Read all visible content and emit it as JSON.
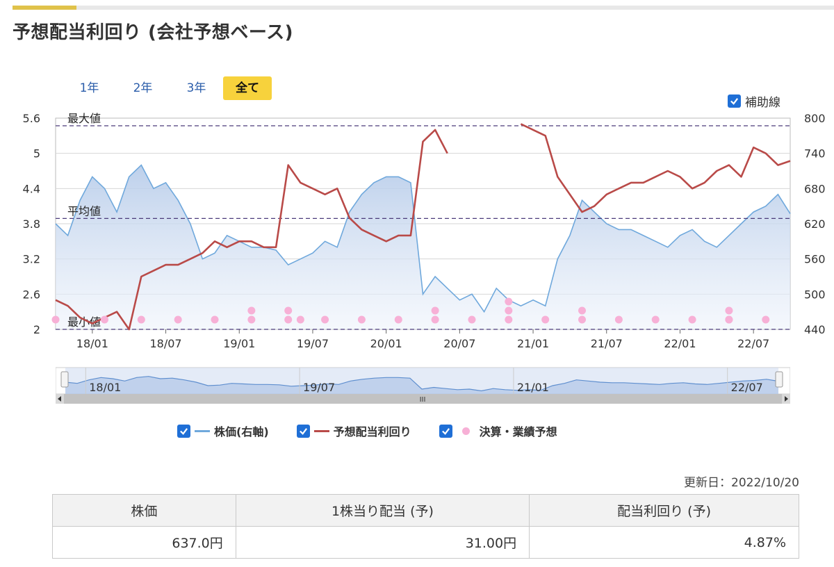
{
  "page": {
    "title": "予想配当利回り (会社予想ベース)"
  },
  "range_tabs": [
    {
      "label": "1年",
      "active": false
    },
    {
      "label": "2年",
      "active": false
    },
    {
      "label": "3年",
      "active": false
    },
    {
      "label": "全て",
      "active": true
    }
  ],
  "aux_line_toggle": {
    "label": "補助線",
    "checked": true
  },
  "legend": {
    "price": {
      "label": "株価(右軸)",
      "checked": true,
      "color": "#6fa8dc"
    },
    "yield": {
      "label": "予想配当利回り",
      "checked": true,
      "color": "#b94a48"
    },
    "events": {
      "label": "決算・業績予想",
      "checked": true,
      "color": "#f7b0d6"
    }
  },
  "navigator": {
    "tick_labels": [
      "18/01",
      "19/07",
      "21/01",
      "22/07"
    ],
    "scroll_grip": "III"
  },
  "updated": {
    "text": "更新日：2022/10/20"
  },
  "summary_table": {
    "headers": [
      "株価",
      "1株当り配当 (予)",
      "配当利回り (予)"
    ],
    "values": [
      "637.0円",
      "31.00円",
      "4.87%"
    ]
  },
  "chart_data": {
    "type": "line",
    "x_tick_labels": [
      "18/01",
      "18/07",
      "19/01",
      "19/07",
      "20/01",
      "20/07",
      "21/01",
      "21/07",
      "22/01",
      "22/07"
    ],
    "x_range": [
      "2017-10",
      "2022-10"
    ],
    "y_left": {
      "ticks": [
        "2",
        "2.6",
        "3.2",
        "3.8",
        "4.4",
        "5",
        "5.6"
      ],
      "range": [
        2,
        5.6
      ],
      "unit": "%"
    },
    "y_right": {
      "ticks": [
        "440",
        "500",
        "560",
        "620",
        "680",
        "740",
        "800"
      ],
      "range": [
        440,
        800
      ],
      "unit": "円"
    },
    "reference_lines": [
      {
        "label": "最大値",
        "value": 5.47
      },
      {
        "label": "平均値",
        "value": 3.89
      },
      {
        "label": "最小値",
        "value": 2.0
      }
    ],
    "grid": true,
    "series": [
      {
        "name": "株価(右軸)",
        "axis": "right",
        "x": [
          "2017-10",
          "2017-11",
          "2017-12",
          "2018-01",
          "2018-02",
          "2018-03",
          "2018-04",
          "2018-05",
          "2018-06",
          "2018-07",
          "2018-08",
          "2018-09",
          "2018-10",
          "2018-11",
          "2018-12",
          "2019-01",
          "2019-02",
          "2019-03",
          "2019-04",
          "2019-05",
          "2019-06",
          "2019-07",
          "2019-08",
          "2019-09",
          "2019-10",
          "2019-11",
          "2019-12",
          "2020-01",
          "2020-02",
          "2020-03",
          "2020-04",
          "2020-05",
          "2020-06",
          "2020-07",
          "2020-08",
          "2020-09",
          "2020-10",
          "2020-11",
          "2020-12",
          "2021-01",
          "2021-02",
          "2021-03",
          "2021-04",
          "2021-05",
          "2021-06",
          "2021-07",
          "2021-08",
          "2021-09",
          "2021-10",
          "2021-11",
          "2021-12",
          "2022-01",
          "2022-02",
          "2022-03",
          "2022-04",
          "2022-05",
          "2022-06",
          "2022-07",
          "2022-08",
          "2022-09",
          "2022-10"
        ],
        "values": [
          620,
          600,
          660,
          700,
          680,
          640,
          700,
          720,
          680,
          690,
          660,
          620,
          560,
          570,
          600,
          590,
          580,
          580,
          575,
          550,
          560,
          570,
          590,
          580,
          640,
          670,
          690,
          700,
          700,
          690,
          500,
          530,
          510,
          490,
          500,
          470,
          510,
          490,
          480,
          490,
          480,
          560,
          600,
          660,
          640,
          620,
          610,
          610,
          600,
          590,
          580,
          600,
          610,
          590,
          580,
          600,
          620,
          640,
          650,
          670,
          637
        ]
      },
      {
        "name": "予想配当利回り",
        "axis": "left",
        "x": [
          "2017-10",
          "2017-11",
          "2017-12",
          "2018-01",
          "2018-02",
          "2018-03",
          "2018-04",
          "2018-05",
          "2018-06",
          "2018-07",
          "2018-08",
          "2018-09",
          "2018-10",
          "2018-11",
          "2018-12",
          "2019-01",
          "2019-02",
          "2019-03",
          "2019-04",
          "2019-05",
          "2019-06",
          "2019-07",
          "2019-08",
          "2019-09",
          "2019-10",
          "2019-11",
          "2019-12",
          "2020-01",
          "2020-02",
          "2020-03",
          "2020-04",
          "2020-05",
          "2020-06",
          "2020-07",
          "2020-08",
          "2020-09",
          "2020-10",
          "2020-11",
          "2020-12",
          "2021-01",
          "2021-02",
          "2021-03",
          "2021-04",
          "2021-05",
          "2021-06",
          "2021-07",
          "2021-08",
          "2021-09",
          "2021-10",
          "2021-11",
          "2021-12",
          "2022-01",
          "2022-02",
          "2022-03",
          "2022-04",
          "2022-05",
          "2022-06",
          "2022-07",
          "2022-08",
          "2022-09",
          "2022-10"
        ],
        "values": [
          2.5,
          2.4,
          2.2,
          2.1,
          2.2,
          2.3,
          2.0,
          2.9,
          3.0,
          3.1,
          3.1,
          3.2,
          3.3,
          3.5,
          3.4,
          3.5,
          3.5,
          3.4,
          3.4,
          4.8,
          4.5,
          4.4,
          4.3,
          4.4,
          3.9,
          3.7,
          3.6,
          3.5,
          3.6,
          3.6,
          5.2,
          5.4,
          5.0,
          null,
          null,
          null,
          null,
          null,
          5.5,
          5.4,
          5.3,
          4.6,
          4.3,
          4.0,
          4.1,
          4.3,
          4.4,
          4.5,
          4.5,
          4.6,
          4.7,
          4.6,
          4.4,
          4.5,
          4.7,
          4.8,
          4.6,
          5.1,
          5.0,
          4.8,
          4.87
        ]
      }
    ],
    "events": {
      "name": "決算・業績予想",
      "x": [
        "2017-10",
        "2018-02",
        "2018-05",
        "2018-08",
        "2018-11",
        "2019-02",
        "2019-02",
        "2019-05",
        "2019-05",
        "2019-06",
        "2019-08",
        "2019-11",
        "2020-02",
        "2020-05",
        "2020-05",
        "2020-08",
        "2020-11",
        "2020-11",
        "2020-11",
        "2021-02",
        "2021-05",
        "2021-05",
        "2021-08",
        "2021-11",
        "2022-02",
        "2022-05",
        "2022-05",
        "2022-05",
        "2022-08"
      ],
      "row": [
        1,
        1,
        1,
        1,
        1,
        1,
        2,
        1,
        2,
        1,
        1,
        1,
        1,
        1,
        2,
        1,
        1,
        2,
        3,
        1,
        1,
        2,
        1,
        1,
        1,
        1,
        1,
        2,
        1
      ]
    }
  }
}
